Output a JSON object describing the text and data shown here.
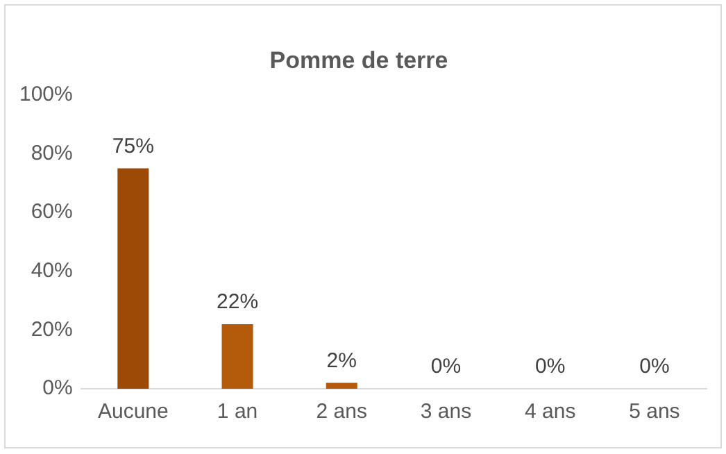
{
  "chart_data": {
    "type": "bar",
    "title": "Pomme de terre",
    "categories": [
      "Aucune",
      "1 an",
      "2 ans",
      "3 ans",
      "4 ans",
      "5 ans"
    ],
    "values": [
      75,
      22,
      2,
      0,
      0,
      0
    ],
    "colors": [
      "#9c4a06",
      "#b35a0b",
      "#b35a0b",
      "#b35a0b",
      "#b35a0b",
      "#b35a0b"
    ],
    "value_labels": [
      "75%",
      "22%",
      "2%",
      "0%",
      "0%",
      "0%"
    ],
    "ylim": [
      0,
      100
    ],
    "yticks": [
      {
        "value": 0,
        "label": "0%"
      },
      {
        "value": 20,
        "label": "20%"
      },
      {
        "value": 40,
        "label": "40%"
      },
      {
        "value": 60,
        "label": "60%"
      },
      {
        "value": 80,
        "label": "80%"
      },
      {
        "value": 100,
        "label": "100%"
      }
    ],
    "grid": false,
    "legend": false
  }
}
